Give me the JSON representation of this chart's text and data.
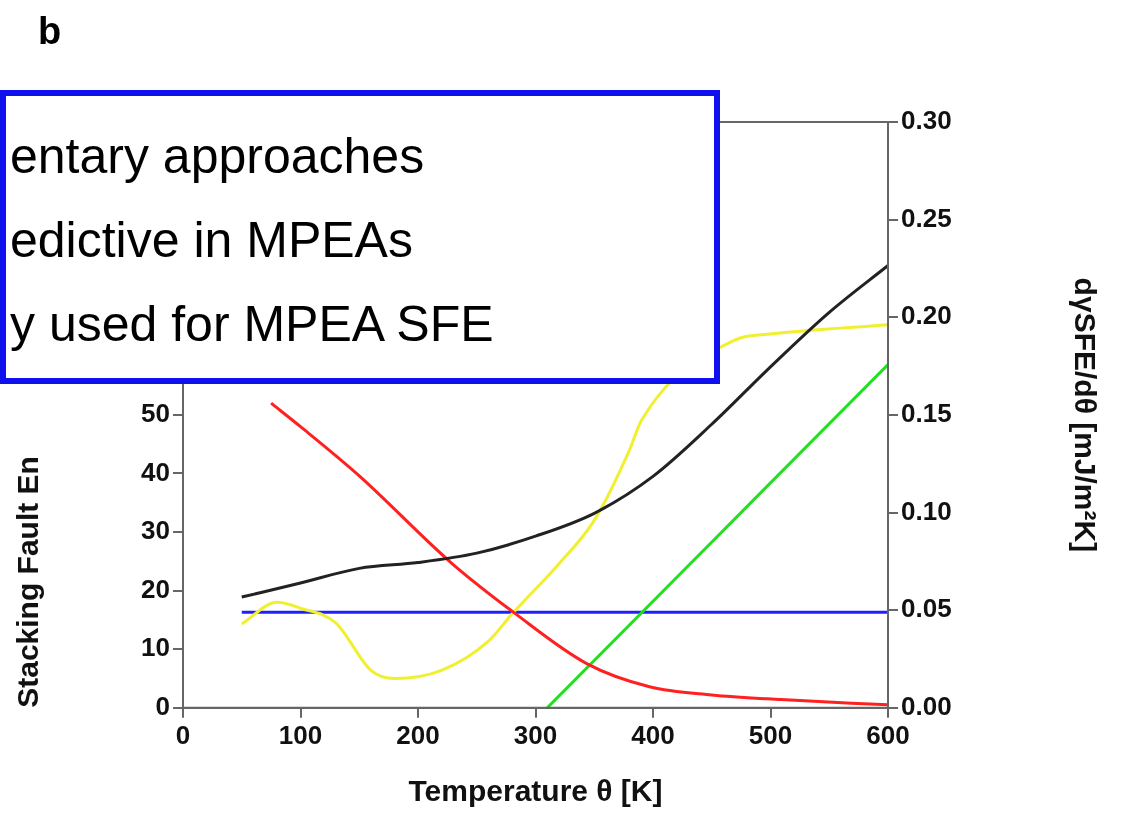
{
  "chart_data": {
    "type": "line",
    "title": "b",
    "xlabel": "Temperature θ [K]",
    "ylabel": "Stacking Fault En",
    "y2label": "dγSFE/dθ [mJ/m²K]",
    "annotations": [
      "entary approaches",
      "edictive in MPEAs",
      "y used for MPEA SFE"
    ],
    "xlim": [
      0,
      600
    ],
    "xticks": [
      0,
      100,
      200,
      300,
      400,
      500,
      600
    ],
    "ylim": [
      0,
      100
    ],
    "yticks": [
      0,
      10,
      20,
      30,
      40,
      50
    ],
    "y2lim": [
      0,
      0.3
    ],
    "y2ticks": [
      {
        "value": 0,
        "label": "0.00"
      },
      {
        "value": 0.05,
        "label": "0.05"
      },
      {
        "value": 0.1,
        "label": "0.10"
      },
      {
        "value": 0.15,
        "label": "0.15"
      },
      {
        "value": 0.2,
        "label": "0.20"
      },
      {
        "value": 0.25,
        "label": "0.25"
      },
      {
        "value": 0.3,
        "label": "0.30"
      }
    ],
    "grid": false,
    "legend": false,
    "marker": "none",
    "line_style": "solid",
    "series": [
      {
        "color": "#222222",
        "x": [
          50,
          100,
          150,
          200,
          250,
          300,
          350,
          400,
          450,
          500,
          550,
          600
        ],
        "values": [
          18.9,
          21.3,
          23.8,
          24.8,
          26.4,
          29.3,
          33.2,
          39.5,
          48.4,
          58.2,
          67.5,
          75.5
        ]
      },
      {
        "color": "#ff2020",
        "x": [
          75,
          100,
          150,
          228,
          282,
          344,
          397,
          450,
          509,
          600
        ],
        "values": [
          52,
          48,
          39.6,
          24.8,
          16.2,
          7.5,
          3.6,
          2.2,
          1.4,
          0.5
        ]
      },
      {
        "color": "#f0f030",
        "x": [
          50,
          80,
          100,
          130,
          160,
          180,
          220,
          260,
          280,
          320,
          350,
          380,
          390,
          470,
          500,
          600
        ],
        "values": [
          14.3,
          18,
          17,
          14.5,
          6.4,
          5,
          6.4,
          11.4,
          16,
          24.6,
          32,
          44,
          49,
          62.8,
          63.8,
          65.4
        ]
      },
      {
        "color": "#20e020",
        "x": [
          310,
          600
        ],
        "values": [
          0,
          58.6
        ]
      },
      {
        "color": "#2020ff",
        "x": [
          50,
          600
        ],
        "values": [
          16.3,
          16.3
        ]
      }
    ]
  }
}
